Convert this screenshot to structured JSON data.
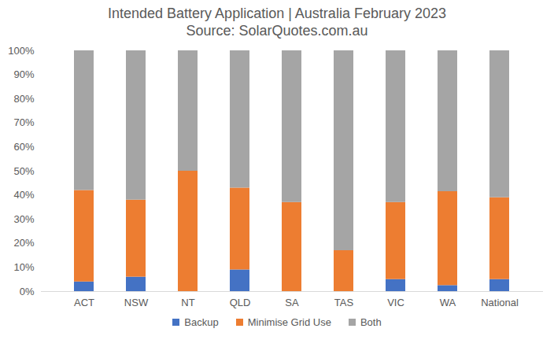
{
  "chart_data": {
    "type": "bar",
    "stacked": true,
    "title": "Intended Battery Application | Australia February 2023",
    "subtitle": "Source: SolarQuotes.com.au",
    "categories": [
      "ACT",
      "NSW",
      "NT",
      "QLD",
      "SA",
      "TAS",
      "VIC",
      "WA",
      "National"
    ],
    "series": [
      {
        "name": "Backup",
        "color": "#4472c4",
        "values": [
          4,
          6,
          0,
          9,
          0,
          0,
          5,
          2.5,
          5
        ]
      },
      {
        "name": "Minimise Grid Use",
        "color": "#ed7d31",
        "values": [
          38,
          32,
          50,
          34,
          37,
          17,
          32,
          39,
          34
        ]
      },
      {
        "name": "Both",
        "color": "#a5a5a5",
        "values": [
          58,
          62,
          50,
          57,
          63,
          83,
          63,
          58.5,
          61
        ]
      }
    ],
    "ylim": [
      0,
      100
    ],
    "yticks": [
      {
        "value": 0,
        "label": "0%"
      },
      {
        "value": 10,
        "label": "10%"
      },
      {
        "value": 20,
        "label": "20%"
      },
      {
        "value": 30,
        "label": "30%"
      },
      {
        "value": 40,
        "label": "40%"
      },
      {
        "value": 50,
        "label": "50%"
      },
      {
        "value": 60,
        "label": "60%"
      },
      {
        "value": 70,
        "label": "70%"
      },
      {
        "value": 80,
        "label": "80%"
      },
      {
        "value": 90,
        "label": "90%"
      },
      {
        "value": 100,
        "label": "100%"
      }
    ],
    "grid": false,
    "legend": "bottom"
  }
}
